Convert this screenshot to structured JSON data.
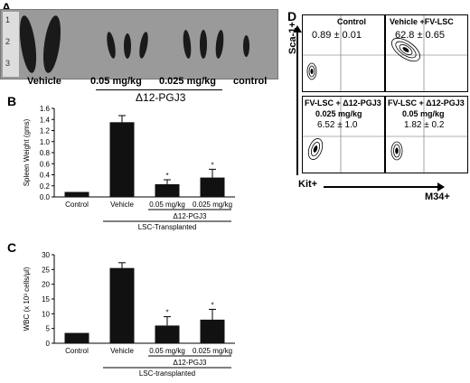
{
  "panel_a": {
    "label": "A",
    "ruler_marks": [
      "1",
      "2",
      "3"
    ],
    "captions": {
      "vehicle": "Vehicle",
      "dose1": "0.05 mg/kg",
      "dose2": "0.025 mg/kg",
      "control": "control",
      "drug": "Δ12-PGJ3"
    }
  },
  "panel_b": {
    "label": "B"
  },
  "panel_c": {
    "label": "C"
  },
  "panel_d": {
    "label": "D",
    "y_axis": "Sca-1+",
    "x_axis_left": "Kit+",
    "x_axis_right": "M34+",
    "plots": [
      {
        "title": "Control",
        "value": "0.89 ± 0.01",
        "dose": ""
      },
      {
        "title": "Vehicle +FV-LSC",
        "value": "62.8 ± 0.65",
        "dose": ""
      },
      {
        "title": "FV-LSC + Δ12-PGJ3",
        "value": "6.52 ± 1.0",
        "dose": "0.025 mg/kg"
      },
      {
        "title": "FV-LSC + Δ12-PGJ3",
        "value": "1.82 ± 0.2",
        "dose": "0.05 mg/kg"
      }
    ]
  },
  "chart_data": [
    {
      "type": "bar",
      "ylabel": "Spleen Weight (gms)",
      "categories": [
        "Control",
        "Vehicle",
        "0.05 mg/kg",
        "0.025 mg/kg"
      ],
      "values": [
        0.09,
        1.35,
        0.23,
        0.35
      ],
      "errors": [
        0,
        0.12,
        0.08,
        0.15
      ],
      "significance": [
        "",
        "",
        "*",
        "*"
      ],
      "yticks": [
        "0.0",
        "0.2",
        "0.4",
        "0.6",
        "0.8",
        "1.0",
        "1.2",
        "1.4",
        "1.6"
      ],
      "ylim": [
        0,
        1.6
      ],
      "group_label": "Δ12-PGJ3",
      "bottom_label": "LSC-Transplanted"
    },
    {
      "type": "bar",
      "ylabel": "WBC (x 10³ cells/μl)",
      "categories": [
        "Control",
        "Vehicle",
        "0.05 mg/kg",
        "0.025 mg/kg"
      ],
      "values": [
        3.5,
        25.5,
        6,
        8
      ],
      "errors": [
        0,
        1.8,
        3,
        3.5
      ],
      "significance": [
        "",
        "",
        "*",
        "*"
      ],
      "yticks": [
        "0",
        "5",
        "10",
        "15",
        "20",
        "25",
        "30"
      ],
      "ylim": [
        0,
        30
      ],
      "group_label": "Δ12-PGJ3",
      "bottom_label": "LSC-transplanted"
    }
  ]
}
